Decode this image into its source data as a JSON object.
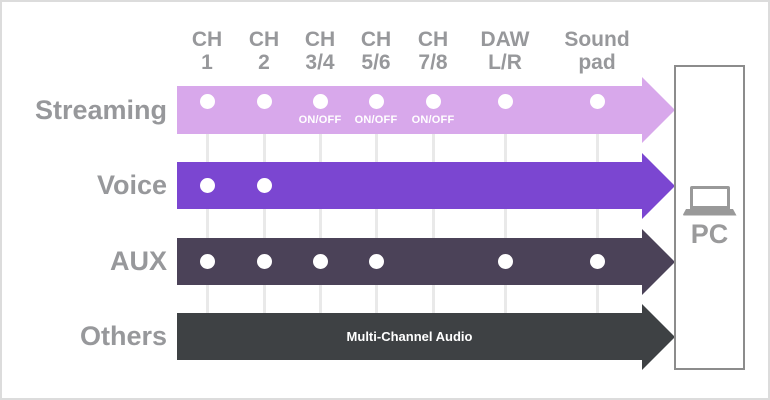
{
  "diagram": {
    "columns": [
      {
        "id": "ch1",
        "line1": "CH",
        "line2": "1"
      },
      {
        "id": "ch2",
        "line1": "CH",
        "line2": "2"
      },
      {
        "id": "ch34",
        "line1": "CH",
        "line2": "3/4"
      },
      {
        "id": "ch56",
        "line1": "CH",
        "line2": "5/6"
      },
      {
        "id": "ch78",
        "line1": "CH",
        "line2": "7/8"
      },
      {
        "id": "daw",
        "line1": "DAW",
        "line2": "L/R"
      },
      {
        "id": "soundpad",
        "line1": "Sound",
        "line2": "pad"
      }
    ],
    "rows": [
      {
        "id": "streaming",
        "label": "Streaming",
        "color": "#d8a8eb",
        "dots": [
          "ch1",
          "ch2",
          "ch34",
          "ch56",
          "ch78",
          "daw",
          "soundpad"
        ],
        "toggles": [
          {
            "column": "ch34",
            "label": "ON/OFF"
          },
          {
            "column": "ch56",
            "label": "ON/OFF"
          },
          {
            "column": "ch78",
            "label": "ON/OFF"
          }
        ]
      },
      {
        "id": "voice",
        "label": "Voice",
        "color": "#7b46d1",
        "dots": [
          "ch1",
          "ch2"
        ],
        "toggles": []
      },
      {
        "id": "aux",
        "label": "AUX",
        "color": "#4b4258",
        "dots": [
          "ch1",
          "ch2",
          "ch34",
          "ch56",
          "daw",
          "soundpad"
        ],
        "toggles": []
      },
      {
        "id": "others",
        "label": "Others",
        "color": "#3e4144",
        "dots": [],
        "toggles": [],
        "band_label": "Multi-Channel Audio"
      }
    ],
    "pc": {
      "label": "PC",
      "icon": "laptop-icon"
    },
    "colors": {
      "header_text": "#97989b",
      "row_label_text": "#97989b",
      "grid_line": "#e9e9e9",
      "dot": "#ffffff",
      "band_text": "#ffffff",
      "frame_border": "#dcdcdc",
      "pc_box_border": "#8c8c8c",
      "pc_icon": "#999999",
      "pc_text": "#9a9a9b"
    }
  }
}
